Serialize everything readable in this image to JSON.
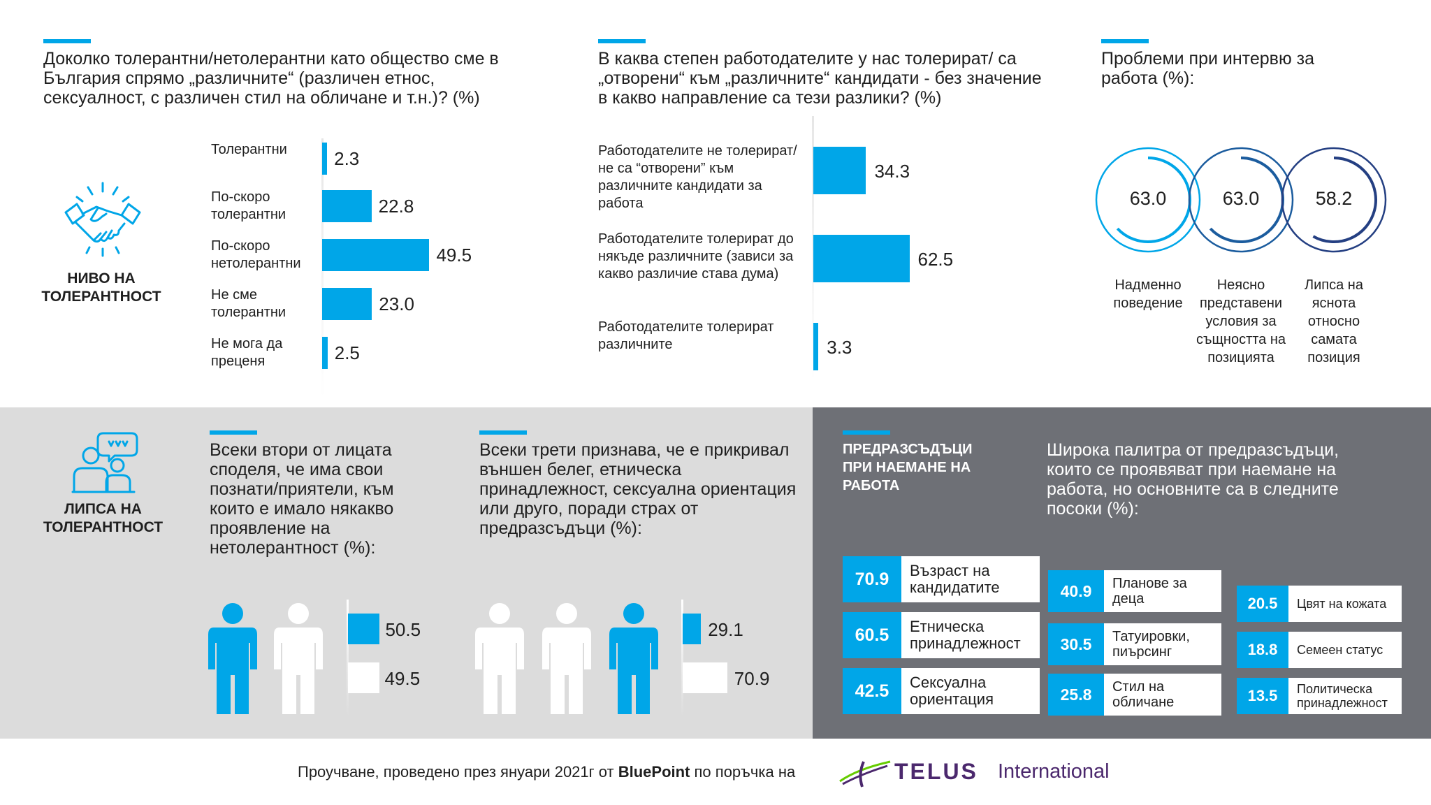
{
  "panel1": {
    "title": "Доколко толерантни/нетолерантни като общество сме в България спрямо „различните“ (различен етнос, сексуалност, с различен стил на обличане и т.н.)? (%)",
    "section_label_1": "НИВО НА",
    "section_label_2": "ТОЛЕРАНТНОСТ",
    "icon": "handshake-icon"
  },
  "panel2": {
    "title": "В каква степен работодателите у нас толерират/ са „отворени“ към „различните“ кандидати - без значение в какво направление са тези разлики? (%)"
  },
  "panel3": {
    "title": "Проблеми при интервю за работа (%):"
  },
  "panel4": {
    "section_label_1": "ЛИПСА НА",
    "section_label_2": "ТОЛЕРАНТНОСТ",
    "icon": "people-talking-icon",
    "text_a": "Всеки втори от лицата споделя, че има свои познати/приятели, към които е имало някакво проявление на нетолерантност (%):",
    "text_b": "Всеки трети признава, че е прикривал външен белег, етническа принадлежност, сексуална ориентация или друго, поради страх от предразсъдъци (%):"
  },
  "panel5": {
    "heading": "ПРЕДРАЗСЪДЪЦИ ПРИ НАЕМАНЕ НА РАБОТА",
    "text": "Широка палитра от предразсъдъци, които се проявяват при наемане на работа, но основните са в следните посоки (%):"
  },
  "footer": {
    "text_before": "Проучване, проведено през януари 2021г от ",
    "brand": "BluePoint",
    "text_after": " по поръчка на",
    "logo_word": "TELUS",
    "logo_suffix": "International"
  },
  "colors": {
    "accent": "#00a6e8",
    "gray_light": "#dcdcdc",
    "gray_dark": "#6e7076",
    "ring_1": "#00a6e8",
    "ring_2": "#1b5c9e",
    "ring_3": "#243f82"
  },
  "chart_data": [
    {
      "type": "bar",
      "orientation": "horizontal",
      "categories": [
        "Толерантни",
        "По-скоро толерантни",
        "По-скоро нетолерантни",
        "Не сме толерантни",
        "Не мога да преценя"
      ],
      "values": [
        2.3,
        22.8,
        49.5,
        23.0,
        2.5
      ]
    },
    {
      "type": "bar",
      "orientation": "horizontal",
      "categories": [
        "Работодателите не толерират/ не са “отворени” към различните кандидати за работа",
        "Работодателите толерират до някъде различните (зависи за какво различие става дума)",
        "Работодателите толерират различните"
      ],
      "values": [
        34.3,
        62.5,
        3.3
      ]
    },
    {
      "type": "pie",
      "style": "rings",
      "categories": [
        "Надменно поведение",
        "Неясно представени условия за същността на позицията",
        "Липса на яснота относно самата позиция"
      ],
      "values": [
        63.0,
        63.0,
        58.2
      ]
    },
    {
      "type": "bar",
      "style": "pictogram",
      "people_total": 2,
      "people_highlighted": 1,
      "values": [
        50.5,
        49.5
      ]
    },
    {
      "type": "bar",
      "style": "pictogram",
      "people_total": 3,
      "people_highlighted": 1,
      "values": [
        29.1,
        70.9
      ]
    },
    {
      "type": "table",
      "columns": [
        [
          {
            "value": "70.9",
            "label": "Възраст на кандидатите"
          },
          {
            "value": "60.5",
            "label": "Етническа принадлежност"
          },
          {
            "value": "42.5",
            "label": "Сексуална ориентация"
          }
        ],
        [
          {
            "value": "40.9",
            "label": "Планове за деца"
          },
          {
            "value": "30.5",
            "label": "Татуировки, пиърсинг"
          },
          {
            "value": "25.8",
            "label": "Стил на обличане"
          }
        ],
        [
          {
            "value": "20.5",
            "label": "Цвят на кожата"
          },
          {
            "value": "18.8",
            "label": "Семеен статус"
          },
          {
            "value": "13.5",
            "label": "Политическа принадлежност"
          }
        ]
      ]
    }
  ]
}
